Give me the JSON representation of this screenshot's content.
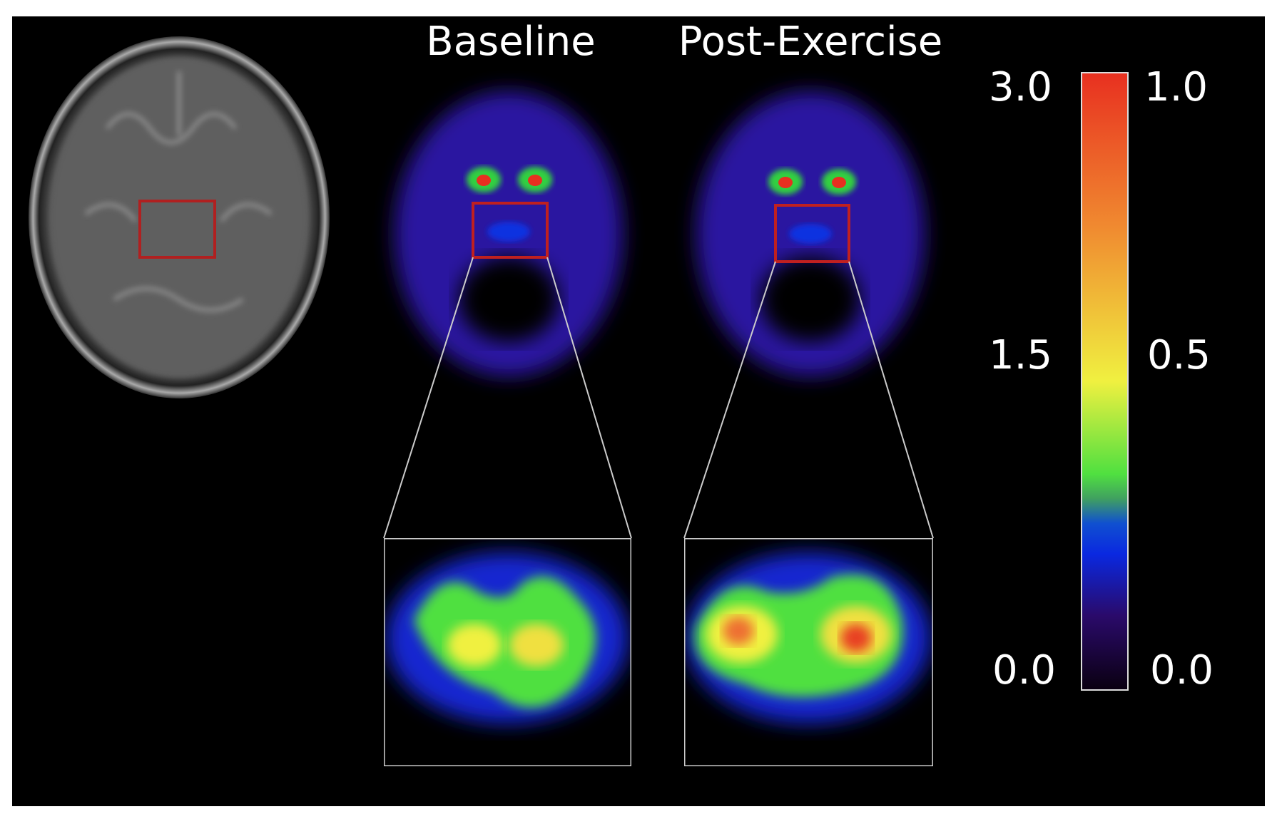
{
  "panels": {
    "baseline": {
      "label": "Baseline"
    },
    "post_exercise": {
      "label": "Post-Exercise"
    }
  },
  "colorbar": {
    "left_labels": [
      "3.0",
      "1.5",
      "0.0"
    ],
    "right_labels": [
      "1.0",
      "0.5",
      "0.0"
    ]
  }
}
